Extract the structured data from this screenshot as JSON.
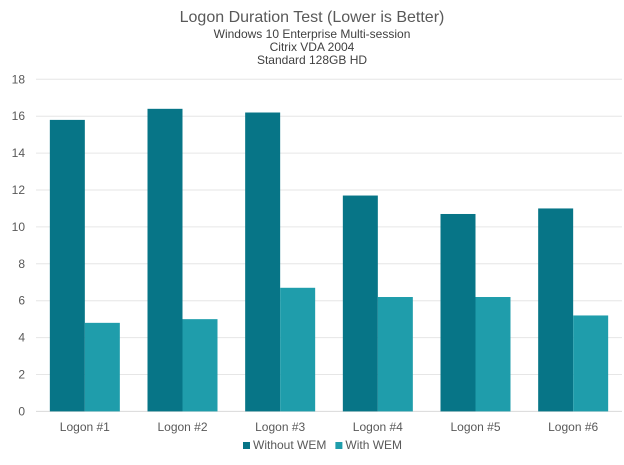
{
  "chart_data": {
    "type": "bar",
    "title": "Logon Duration Test (Lower is Better)",
    "subtitles": [
      "Windows 10 Enterprise Multi-session",
      "Citrix VDA 2004",
      "Standard 128GB HD"
    ],
    "categories": [
      "Logon #1",
      "Logon #2",
      "Logon #3",
      "Logon #4",
      "Logon #5",
      "Logon #6"
    ],
    "series": [
      {
        "name": "Without WEM",
        "color": "#077587",
        "values": [
          15.8,
          16.4,
          16.2,
          11.7,
          10.7,
          11.0
        ]
      },
      {
        "name": "With WEM",
        "color": "#1f9dab",
        "values": [
          4.8,
          5.0,
          6.7,
          6.2,
          6.2,
          5.2
        ]
      }
    ],
    "ylim": [
      0,
      18
    ],
    "yticks": [
      "0",
      "2",
      "4",
      "6",
      "8",
      "10",
      "12",
      "14",
      "16",
      "18"
    ],
    "xlabel": "",
    "ylabel": "",
    "grid": true,
    "legend": "bottom"
  }
}
